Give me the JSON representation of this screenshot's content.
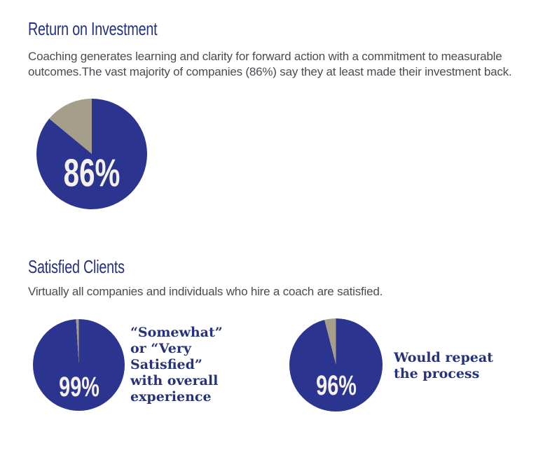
{
  "colors": {
    "pie_fill_blue": "#2b3590",
    "pie_remainder_gray": "#a49e8b",
    "heading_blue": "#223180",
    "body_gray": "#4b4b53",
    "caption_navy": "#26337b",
    "percent_label": "#f4f1ea",
    "page_background": "#ffffff"
  },
  "sections": [
    {
      "heading": "Return on Investment",
      "body": "Coaching generates learning and clarity for forward action with a commitment to measurable\noutcomes.The vast majority of companies (86%) say they at least made their investment back."
    },
    {
      "heading": "Satisfied Clients",
      "body": "Virtually all companies and individuals who hire a coach are satisfied."
    }
  ],
  "chart_data": [
    {
      "type": "pie",
      "title": "Return on Investment",
      "value": 86,
      "remainder": 14,
      "display_label": "86%",
      "caption": "",
      "slices": [
        {
          "name": "at least made their investment back",
          "value": 86,
          "color": "#2b3590"
        },
        {
          "name": "remainder",
          "value": 14,
          "color": "#a49e8b"
        }
      ]
    },
    {
      "type": "pie",
      "title": "Satisfied Clients - overall experience",
      "value": 99,
      "remainder": 1,
      "display_label": "99%",
      "caption": "“Somewhat”\nor “Very\nSatisfied”\nwith overall\nexperience",
      "slices": [
        {
          "name": "somewhat or very satisfied",
          "value": 99,
          "color": "#2b3590"
        },
        {
          "name": "remainder",
          "value": 1,
          "color": "#a49e8b"
        }
      ]
    },
    {
      "type": "pie",
      "title": "Satisfied Clients - repeat",
      "value": 96,
      "remainder": 4,
      "display_label": "96%",
      "caption": "Would repeat\nthe process",
      "slices": [
        {
          "name": "would repeat the process",
          "value": 96,
          "color": "#2b3590"
        },
        {
          "name": "remainder",
          "value": 4,
          "color": "#a49e8b"
        }
      ]
    }
  ]
}
